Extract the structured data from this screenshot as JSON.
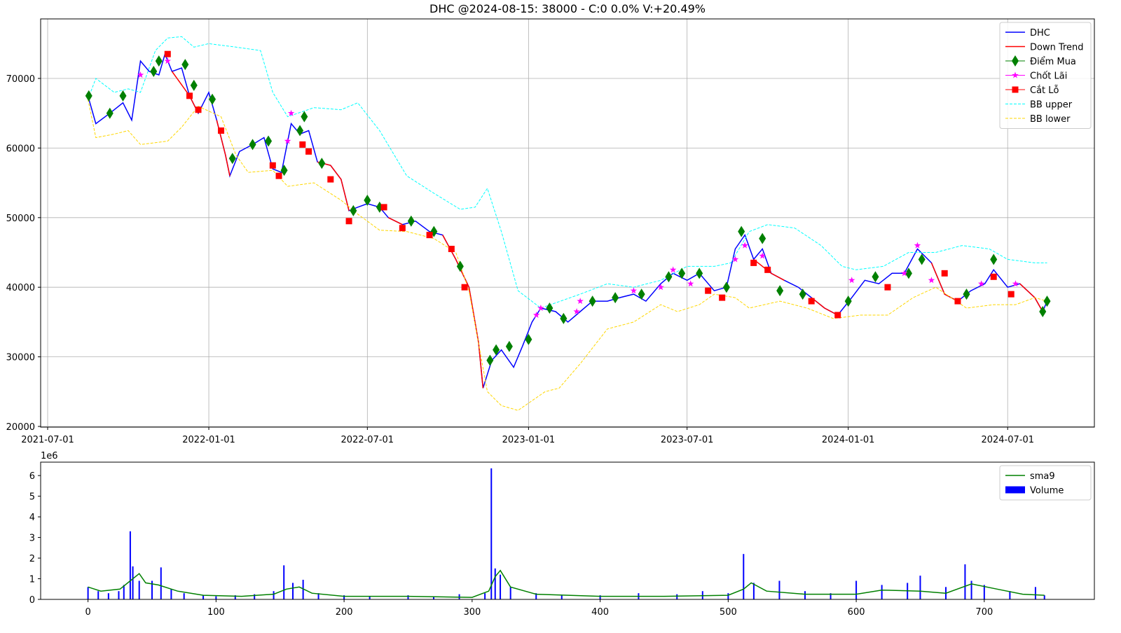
{
  "chart_data": [
    {
      "type": "line",
      "title": "DHC @2024-08-15: 38000 - C:0 0.0% V:+20.49%",
      "xlim": [
        "2021-06-23",
        "2024-10-08"
      ],
      "xticks": [
        "2021-07-01",
        "2022-01-01",
        "2022-07-01",
        "2023-01-01",
        "2023-07-01",
        "2024-01-01",
        "2024-07-01"
      ],
      "ylim": [
        19900,
        78550
      ],
      "yticks": [
        20000,
        30000,
        40000,
        50000,
        60000,
        70000
      ],
      "grid": true,
      "legend": "upper right",
      "series": [
        {
          "name": "DHC",
          "color": "#0000ff",
          "kind": "line",
          "x": [
            "2021-08-16",
            "2021-08-25",
            "2021-09-10",
            "2021-09-25",
            "2021-10-05",
            "2021-10-15",
            "2021-10-25",
            "2021-11-05",
            "2021-11-12",
            "2021-11-20",
            "2021-12-01",
            "2021-12-10",
            "2021-12-20",
            "2022-01-01",
            "2022-01-10",
            "2022-01-20",
            "2022-01-25",
            "2022-02-05",
            "2022-02-20",
            "2022-03-05",
            "2022-03-15",
            "2022-03-25",
            "2022-04-05",
            "2022-04-15",
            "2022-04-25",
            "2022-05-05",
            "2022-05-20",
            "2022-06-01",
            "2022-06-10",
            "2022-06-20",
            "2022-07-01",
            "2022-07-15",
            "2022-07-25",
            "2022-08-10",
            "2022-08-25",
            "2022-09-10",
            "2022-09-25",
            "2022-10-10",
            "2022-10-25",
            "2022-11-05",
            "2022-11-10",
            "2022-11-20",
            "2022-12-01",
            "2022-12-15",
            "2022-12-25",
            "2023-01-05",
            "2023-01-15",
            "2023-02-01",
            "2023-02-15",
            "2023-03-01",
            "2023-03-15",
            "2023-04-01",
            "2023-04-15",
            "2023-05-01",
            "2023-05-15",
            "2023-06-01",
            "2023-06-15",
            "2023-07-01",
            "2023-07-15",
            "2023-08-01",
            "2023-08-15",
            "2023-08-25",
            "2023-09-05",
            "2023-09-15",
            "2023-09-25",
            "2023-10-05",
            "2023-10-20",
            "2023-11-05",
            "2023-11-20",
            "2023-12-05",
            "2023-12-20",
            "2024-01-05",
            "2024-01-20",
            "2024-02-05",
            "2024-02-20",
            "2024-03-05",
            "2024-03-20",
            "2024-04-05",
            "2024-04-20",
            "2024-05-05",
            "2024-05-20",
            "2024-06-05",
            "2024-06-15",
            "2024-07-01",
            "2024-07-15",
            "2024-08-01",
            "2024-08-10",
            "2024-08-15"
          ],
          "values": [
            67500,
            63500,
            65000,
            66500,
            64000,
            72500,
            71000,
            70500,
            73500,
            71000,
            71500,
            67500,
            65000,
            68000,
            64000,
            59000,
            56000,
            59500,
            60500,
            61500,
            57000,
            56500,
            63500,
            62000,
            62500,
            58000,
            57500,
            55500,
            51000,
            51500,
            52000,
            51500,
            50000,
            49000,
            49500,
            48000,
            47500,
            44000,
            40000,
            32000,
            25500,
            29500,
            31000,
            28500,
            31500,
            35000,
            37000,
            36500,
            35000,
            36500,
            38000,
            38000,
            38500,
            39000,
            38000,
            40500,
            42000,
            41000,
            42000,
            39500,
            40000,
            45500,
            47500,
            44000,
            45500,
            42000,
            41000,
            40000,
            38500,
            37000,
            36000,
            38500,
            41000,
            40500,
            42000,
            42000,
            45500,
            43500,
            39000,
            38000,
            39500,
            40500,
            42500,
            40000,
            40500,
            38500,
            36500,
            38000
          ]
        },
        {
          "name": "Down Trend",
          "color": "#ff0000",
          "kind": "line",
          "x": [
            "2021-11-20",
            "2021-12-10",
            "2021-12-20",
            "2021-12-25",
            "2022-01-10",
            "2022-01-20",
            "2022-01-25",
            "2022-02-01",
            "2022-05-05",
            "2022-05-20",
            "2022-06-01",
            "2022-06-10",
            "2022-06-15",
            "2022-07-25",
            "2022-08-10",
            "2022-08-15",
            "2022-09-25",
            "2022-10-10",
            "2022-10-25",
            "2022-11-05",
            "2022-11-10",
            "2022-11-15",
            "2023-09-15",
            "2023-10-05",
            "2023-10-20",
            "2023-11-01",
            "2023-11-20",
            "2023-12-05",
            "2023-12-20",
            "2024-01-01",
            "2024-04-05",
            "2024-04-20",
            "2024-05-05",
            "2024-05-10",
            "2024-07-15",
            "2024-08-01",
            "2024-08-10"
          ],
          "values": [
            71000,
            67500,
            65000,
            null,
            64000,
            59000,
            56000,
            null,
            58000,
            57500,
            55500,
            51000,
            null,
            50000,
            49000,
            null,
            47500,
            44000,
            40000,
            32000,
            25500,
            null,
            44000,
            42000,
            41000,
            null,
            38500,
            37000,
            36000,
            null,
            43500,
            39000,
            38000,
            null,
            40500,
            38500,
            36500
          ]
        },
        {
          "name": "Điểm Mua",
          "color": "#008000",
          "kind": "marker",
          "marker": "diamond",
          "x": [
            "2021-08-17",
            "2021-09-10",
            "2021-09-25",
            "2021-10-30",
            "2021-11-05",
            "2021-12-05",
            "2021-12-15",
            "2022-01-05",
            "2022-01-28",
            "2022-02-20",
            "2022-03-10",
            "2022-03-28",
            "2022-04-15",
            "2022-04-20",
            "2022-05-10",
            "2022-06-15",
            "2022-07-01",
            "2022-07-15",
            "2022-08-20",
            "2022-09-15",
            "2022-10-15",
            "2022-11-18",
            "2022-11-25",
            "2022-12-10",
            "2023-01-01",
            "2023-01-25",
            "2023-02-10",
            "2023-03-15",
            "2023-04-10",
            "2023-05-10",
            "2023-06-10",
            "2023-06-25",
            "2023-07-15",
            "2023-08-15",
            "2023-09-01",
            "2023-09-25",
            "2023-10-15",
            "2023-11-10",
            "2024-01-01",
            "2024-02-01",
            "2024-03-10",
            "2024-03-25",
            "2024-05-15",
            "2024-06-15",
            "2024-08-10",
            "2024-08-15"
          ],
          "values": [
            67500,
            65000,
            67500,
            71000,
            72500,
            72000,
            69000,
            67000,
            58500,
            60500,
            61000,
            56800,
            62500,
            64500,
            57800,
            51000,
            52500,
            51500,
            49500,
            48000,
            43000,
            29500,
            31000,
            31500,
            32500,
            37000,
            35500,
            38000,
            38500,
            39000,
            41500,
            42000,
            42000,
            40000,
            48000,
            47000,
            39500,
            39000,
            38000,
            41500,
            42000,
            44000,
            39000,
            44000,
            36500,
            38000
          ]
        },
        {
          "name": "Chốt Lãi",
          "color": "#ff00ff",
          "kind": "marker",
          "marker": "star",
          "x": [
            "2021-10-15",
            "2021-11-15",
            "2022-04-01",
            "2022-04-05",
            "2023-01-10",
            "2023-01-15",
            "2023-02-25",
            "2023-03-01",
            "2023-05-01",
            "2023-06-01",
            "2023-06-15",
            "2023-07-05",
            "2023-08-25",
            "2023-09-05",
            "2023-09-25",
            "2024-01-05",
            "2024-03-05",
            "2024-03-20",
            "2024-04-05",
            "2024-06-01",
            "2024-07-10"
          ],
          "values": [
            70500,
            72500,
            61000,
            65000,
            36000,
            37000,
            36500,
            38000,
            39500,
            40000,
            42500,
            40500,
            44000,
            46000,
            44500,
            41000,
            42000,
            46000,
            41000,
            40500,
            40500
          ]
        },
        {
          "name": "Cắt Lỗ",
          "color": "#ff0000",
          "kind": "marker",
          "marker": "square",
          "x": [
            "2021-11-15",
            "2021-12-10",
            "2021-12-20",
            "2022-01-15",
            "2022-03-15",
            "2022-03-22",
            "2022-04-18",
            "2022-04-25",
            "2022-05-20",
            "2022-06-10",
            "2022-07-20",
            "2022-08-10",
            "2022-09-10",
            "2022-10-05",
            "2022-10-20",
            "2023-07-25",
            "2023-08-10",
            "2023-09-15",
            "2023-10-01",
            "2023-11-20",
            "2023-12-20",
            "2024-02-15",
            "2024-04-20",
            "2024-05-05",
            "2024-06-15",
            "2024-07-05"
          ],
          "values": [
            73500,
            67500,
            65500,
            62500,
            57500,
            56000,
            60500,
            59500,
            55500,
            49500,
            51500,
            48500,
            47500,
            45500,
            40000,
            39500,
            38500,
            43500,
            42500,
            38000,
            36000,
            40000,
            42000,
            38000,
            41500,
            39000
          ]
        },
        {
          "name": "BB upper",
          "color": "#00ffff",
          "kind": "line",
          "dash": true,
          "x": [
            "2021-08-16",
            "2021-08-25",
            "2021-09-15",
            "2021-10-01",
            "2021-10-15",
            "2021-11-01",
            "2021-11-15",
            "2021-12-01",
            "2021-12-15",
            "2022-01-01",
            "2022-02-01",
            "2022-03-01",
            "2022-03-15",
            "2022-04-01",
            "2022-05-01",
            "2022-06-01",
            "2022-06-20",
            "2022-07-15",
            "2022-08-15",
            "2022-09-15",
            "2022-10-15",
            "2022-11-01",
            "2022-11-15",
            "2022-12-01",
            "2022-12-20",
            "2023-01-15",
            "2023-03-01",
            "2023-04-01",
            "2023-05-01",
            "2023-06-01",
            "2023-07-01",
            "2023-08-01",
            "2023-08-20",
            "2023-09-10",
            "2023-10-01",
            "2023-11-01",
            "2023-12-01",
            "2023-12-25",
            "2024-01-10",
            "2024-02-10",
            "2024-03-10",
            "2024-04-10",
            "2024-05-10",
            "2024-06-10",
            "2024-07-01",
            "2024-08-01",
            "2024-08-15"
          ],
          "values": [
            67000,
            70000,
            68000,
            68500,
            68000,
            74000,
            75800,
            76000,
            74500,
            75000,
            74500,
            74000,
            68000,
            64500,
            65800,
            65500,
            66500,
            62500,
            56000,
            53500,
            51200,
            51500,
            54200,
            48000,
            39500,
            37000,
            39000,
            40500,
            40000,
            41000,
            43000,
            43000,
            43500,
            48000,
            49000,
            48500,
            46000,
            43000,
            42500,
            43000,
            45000,
            45000,
            46000,
            45500,
            44000,
            43500,
            43500
          ]
        },
        {
          "name": "BB lower",
          "color": "#ffd700",
          "kind": "line",
          "dash": true,
          "x": [
            "2021-08-16",
            "2021-08-25",
            "2021-09-15",
            "2021-10-01",
            "2021-10-15",
            "2021-11-15",
            "2021-12-01",
            "2021-12-20",
            "2022-01-15",
            "2022-02-01",
            "2022-02-15",
            "2022-03-15",
            "2022-04-01",
            "2022-05-01",
            "2022-06-01",
            "2022-06-20",
            "2022-07-15",
            "2022-08-15",
            "2022-09-15",
            "2022-10-10",
            "2022-10-25",
            "2022-11-15",
            "2022-12-01",
            "2022-12-20",
            "2023-01-20",
            "2023-02-05",
            "2023-03-01",
            "2023-04-01",
            "2023-05-01",
            "2023-06-01",
            "2023-06-20",
            "2023-07-15",
            "2023-08-01",
            "2023-08-25",
            "2023-09-10",
            "2023-10-15",
            "2023-11-15",
            "2023-12-15",
            "2024-01-15",
            "2024-02-15",
            "2024-03-15",
            "2024-04-10",
            "2024-05-15",
            "2024-06-15",
            "2024-07-10",
            "2024-08-01",
            "2024-08-15"
          ],
          "values": [
            67000,
            61500,
            62000,
            62500,
            60500,
            61000,
            63000,
            66000,
            64500,
            59000,
            56500,
            56800,
            54500,
            55000,
            52500,
            50500,
            48200,
            48000,
            47000,
            45000,
            39500,
            25000,
            23000,
            22300,
            25000,
            25500,
            29000,
            34000,
            35000,
            37500,
            36500,
            37500,
            39000,
            38500,
            37000,
            38000,
            37000,
            35500,
            36000,
            36000,
            38500,
            40000,
            37000,
            37500,
            37500,
            38500,
            38000
          ]
        }
      ]
    },
    {
      "type": "bar",
      "xlim": [
        -37,
        786
      ],
      "xticks": [
        0,
        100,
        200,
        300,
        400,
        500,
        600,
        700
      ],
      "ylim": [
        0,
        6.65
      ],
      "yticks": [
        0,
        1,
        2,
        3,
        4,
        5,
        6
      ],
      "y_offset_label": "1e6",
      "grid": false,
      "legend": "upper right",
      "series": [
        {
          "name": "sma9",
          "color": "#008000",
          "kind": "line",
          "x": [
            0,
            10,
            25,
            33,
            40,
            45,
            55,
            70,
            90,
            120,
            145,
            155,
            165,
            175,
            200,
            250,
            300,
            313,
            318,
            322,
            330,
            350,
            400,
            450,
            500,
            512,
            518,
            530,
            560,
            600,
            620,
            650,
            670,
            690,
            710,
            730,
            747
          ],
          "values": [
            0.6,
            0.4,
            0.5,
            0.9,
            1.25,
            0.8,
            0.7,
            0.4,
            0.2,
            0.15,
            0.25,
            0.5,
            0.6,
            0.3,
            0.15,
            0.15,
            0.1,
            0.4,
            1.1,
            1.4,
            0.6,
            0.25,
            0.15,
            0.15,
            0.2,
            0.5,
            0.8,
            0.4,
            0.25,
            0.25,
            0.45,
            0.4,
            0.3,
            0.75,
            0.5,
            0.25,
            0.2
          ]
        },
        {
          "name": "Volume",
          "color": "#0000ff",
          "kind": "bar",
          "x": [
            0,
            8,
            16,
            24,
            28,
            33,
            35,
            40,
            50,
            57,
            65,
            75,
            90,
            100,
            115,
            130,
            145,
            153,
            160,
            168,
            180,
            200,
            220,
            250,
            270,
            290,
            310,
            315,
            318,
            322,
            330,
            350,
            370,
            400,
            430,
            460,
            480,
            500,
            512,
            520,
            540,
            560,
            580,
            600,
            620,
            640,
            650,
            670,
            685,
            690,
            700,
            720,
            740,
            747
          ],
          "values": [
            0.6,
            0.4,
            0.3,
            0.4,
            0.7,
            3.3,
            1.6,
            0.9,
            0.9,
            1.55,
            0.5,
            0.3,
            0.2,
            0.15,
            0.2,
            0.25,
            0.4,
            1.65,
            0.8,
            0.95,
            0.3,
            0.2,
            0.15,
            0.2,
            0.15,
            0.25,
            0.3,
            6.35,
            1.5,
            1.2,
            0.6,
            0.3,
            0.2,
            0.2,
            0.3,
            0.25,
            0.4,
            0.3,
            2.2,
            0.8,
            0.9,
            0.4,
            0.3,
            0.9,
            0.7,
            0.8,
            1.15,
            0.6,
            1.7,
            0.9,
            0.7,
            0.4,
            0.6,
            0.2
          ]
        }
      ]
    }
  ]
}
